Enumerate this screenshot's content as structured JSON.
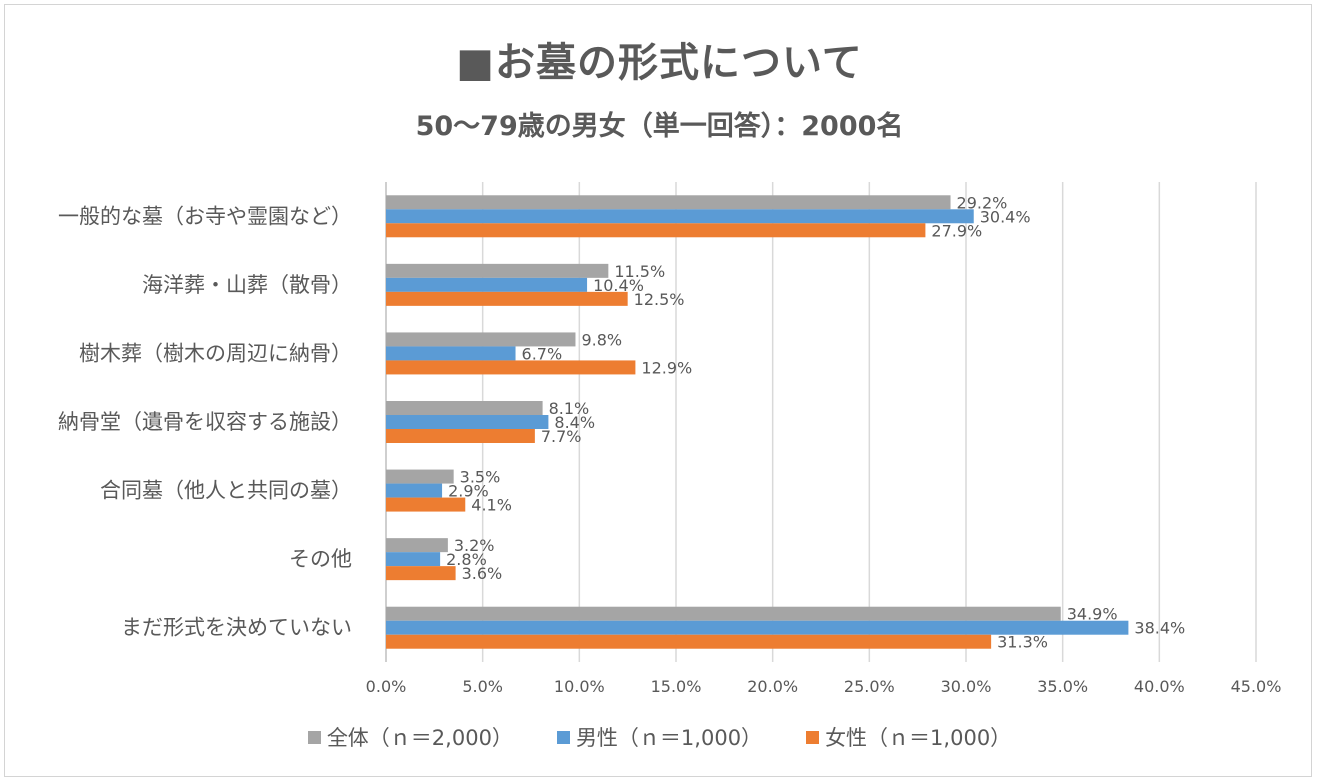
{
  "chart_data": {
    "type": "bar",
    "orientation": "horizontal",
    "title": "■お墓の形式について",
    "subtitle": "50～79歳の男女（単一回答）：2000名",
    "categories": [
      "一般的な墓（お寺や霊園など）",
      "海洋葬・山葬（散骨）",
      "樹木葬（樹木の周辺に納骨）",
      "納骨堂（遺骨を収容する施設）",
      "合同墓（他人と共同の墓）",
      "その他",
      "まだ形式を決めていない"
    ],
    "series": [
      {
        "name": "全体（ｎ＝2,000）",
        "color": "#a5a5a5",
        "values": [
          29.2,
          11.5,
          9.8,
          8.1,
          3.5,
          3.2,
          34.9
        ],
        "labels": [
          "29.2%",
          "11.5%",
          "9.8%",
          "8.1%",
          "3.5%",
          "3.2%",
          "34.9%"
        ]
      },
      {
        "name": "男性（ｎ＝1,000）",
        "color": "#5b9bd5",
        "values": [
          30.4,
          10.4,
          6.7,
          8.4,
          2.9,
          2.8,
          38.4
        ],
        "labels": [
          "30.4%",
          "10.4%",
          "6.7%",
          "8.4%",
          "2.9%",
          "2.8%",
          "38.4%"
        ]
      },
      {
        "name": "女性（ｎ＝1,000）",
        "color": "#ed7d31",
        "values": [
          27.9,
          12.5,
          12.9,
          7.7,
          4.1,
          3.6,
          31.3
        ],
        "labels": [
          "27.9%",
          "12.5%",
          "12.9%",
          "7.7%",
          "4.1%",
          "3.6%",
          "31.3%"
        ]
      }
    ],
    "xlim": [
      0,
      45
    ],
    "xticks": [
      0,
      5,
      10,
      15,
      20,
      25,
      30,
      35,
      40,
      45
    ],
    "xtick_labels": [
      "0.0%",
      "5.0%",
      "10.0%",
      "15.0%",
      "20.0%",
      "25.0%",
      "30.0%",
      "35.0%",
      "40.0%",
      "45.0%"
    ],
    "grid": "vertical",
    "legend": "bottom",
    "gridline_color": "#d9d9d9",
    "text_color": "#595959"
  }
}
